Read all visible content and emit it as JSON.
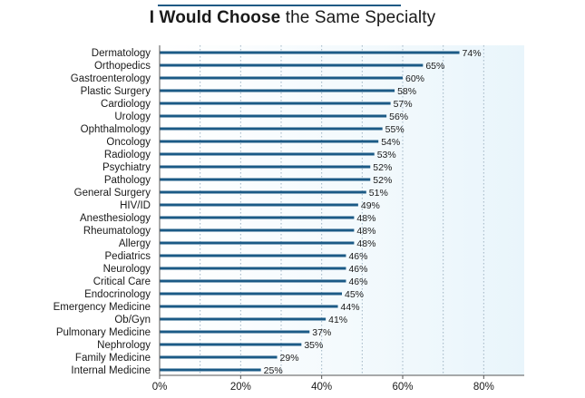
{
  "title": {
    "bold": "I Would Choose",
    "rest": " the Same Specialty"
  },
  "chart_data": {
    "type": "bar",
    "orientation": "horizontal",
    "title": "I Would Choose the Same Specialty",
    "categories": [
      "Dermatology",
      "Orthopedics",
      "Gastroenterology",
      "Plastic Surgery",
      "Cardiology",
      "Urology",
      "Ophthalmology",
      "Oncology",
      "Radiology",
      "Psychiatry",
      "Pathology",
      "General Surgery",
      "HIV/ID",
      "Anesthesiology",
      "Rheumatology",
      "Allergy",
      "Pediatrics",
      "Neurology",
      "Critical Care",
      "Endocrinology",
      "Emergency Medicine",
      "Ob/Gyn",
      "Pulmonary Medicine",
      "Nephrology",
      "Family Medicine",
      "Internal Medicine"
    ],
    "values": [
      74,
      65,
      60,
      58,
      57,
      56,
      55,
      54,
      53,
      52,
      52,
      51,
      49,
      48,
      48,
      48,
      46,
      46,
      46,
      45,
      44,
      41,
      37,
      35,
      29,
      25
    ],
    "value_labels": [
      "74%",
      "65%",
      "60%",
      "58%",
      "57%",
      "56%",
      "55%",
      "54%",
      "53%",
      "52%",
      "52%",
      "51%",
      "49%",
      "48%",
      "48%",
      "48%",
      "46%",
      "46%",
      "46%",
      "45%",
      "44%",
      "41%",
      "37%",
      "35%",
      "29%",
      "25%"
    ],
    "xlim": [
      0,
      90
    ],
    "x_ticks": [
      0,
      20,
      40,
      60,
      80
    ],
    "x_tick_labels": [
      "0%",
      "20%",
      "40%",
      "60%",
      "80%"
    ],
    "grid": "dotted vertical every 10%",
    "colors": {
      "bar": "#1b5a86",
      "plot_bg_start": "#ffffff",
      "plot_bg_end": "#e9f5fb",
      "grid": "#9fb4c4",
      "axis": "#555555",
      "accent": "#1f5a84"
    }
  }
}
